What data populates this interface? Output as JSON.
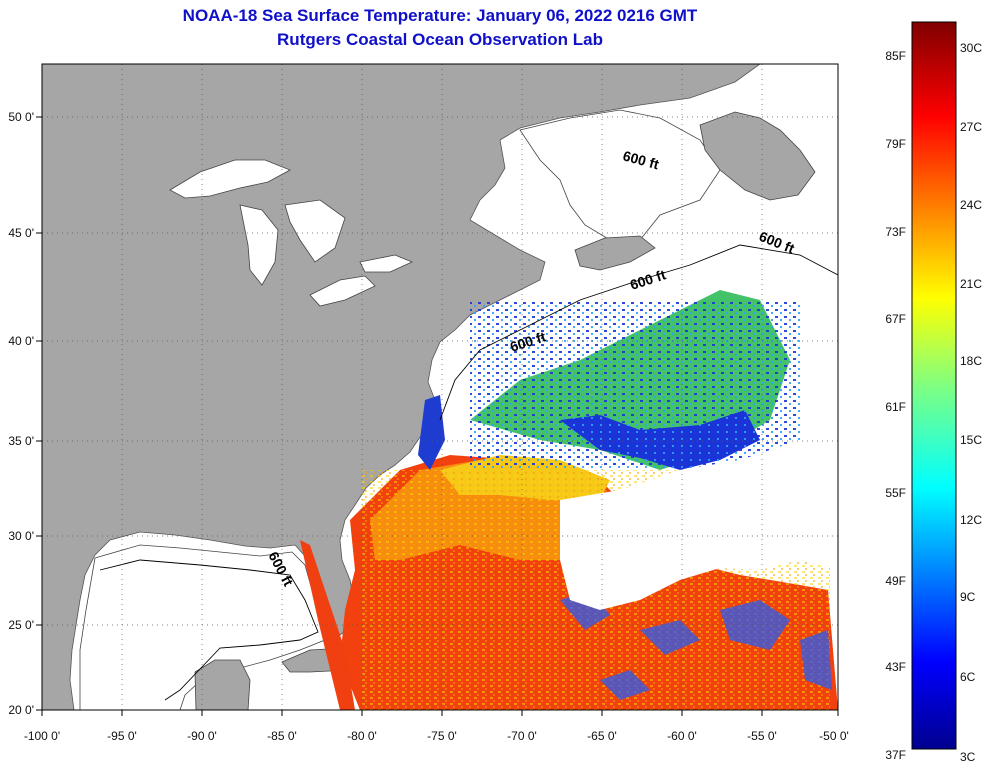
{
  "header": {
    "title": "NOAA-18 Sea Surface Temperature:  January 06, 2022 0216 GMT",
    "subtitle": "Rutgers Coastal Ocean Observation Lab"
  },
  "map": {
    "lon_ticks": [
      "-100 0'",
      "-95 0'",
      "-90 0'",
      "-85 0'",
      "-80 0'",
      "-75 0'",
      "-70 0'",
      "-65 0'",
      "-60 0'",
      "-55 0'",
      "-50 0'"
    ],
    "lat_ticks": [
      "50 0'",
      "45 0'",
      "40 0'",
      "35 0'",
      "30 0'",
      "25 0'",
      "20 0'"
    ],
    "contour_labels": [
      "600 ft",
      "600 ft",
      "600 ft",
      "600 ft",
      "600 ft"
    ],
    "colors": {
      "land": "#a6a6a6",
      "ocean_clouds": "#ffffff",
      "title": "#1010c8"
    }
  },
  "colorbar": {
    "fahrenheit": [
      "85F",
      "79F",
      "73F",
      "67F",
      "61F",
      "55F",
      "49F",
      "43F",
      "37F"
    ],
    "celsius": [
      "30C",
      "27C",
      "24C",
      "21C",
      "18C",
      "15C",
      "12C",
      "9C",
      "6C",
      "3C"
    ],
    "range_f": [
      37,
      88
    ],
    "range_c": [
      3,
      31
    ]
  }
}
